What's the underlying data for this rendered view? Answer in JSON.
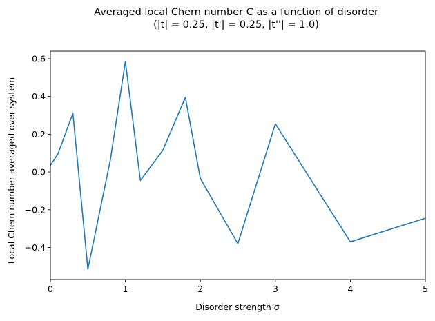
{
  "chart_data": {
    "type": "line",
    "title_lines": [
      "Averaged local Chern number C as a function of disorder",
      "(|t| = 0.25, |t'| = 0.25, |t''| = 1.0)"
    ],
    "xlabel": "Disorder strength σ",
    "ylabel": "Local Chern number averaged over system",
    "xlim": [
      0,
      5
    ],
    "ylim": [
      -0.57,
      0.64
    ],
    "xticks": [
      0,
      1,
      2,
      3,
      4,
      5
    ],
    "xtick_labels": [
      "0",
      "1",
      "2",
      "3",
      "4",
      "5"
    ],
    "yticks": [
      -0.4,
      -0.2,
      0.0,
      0.2,
      0.4,
      0.6
    ],
    "ytick_labels": [
      "−0.4",
      "−0.2",
      "0.0",
      "0.2",
      "0.4",
      "0.6"
    ],
    "grid": false,
    "series": [
      {
        "color": "#1f77b4",
        "x": [
          0,
          0.1,
          0.3,
          0.5,
          0.8,
          1.0,
          1.2,
          1.5,
          1.8,
          2.0,
          2.5,
          3.0,
          4.0,
          5.0
        ],
        "y": [
          0.035,
          0.095,
          0.31,
          -0.515,
          0.065,
          0.585,
          -0.045,
          0.115,
          0.395,
          -0.035,
          -0.38,
          0.255,
          -0.37,
          -0.245
        ]
      }
    ]
  }
}
